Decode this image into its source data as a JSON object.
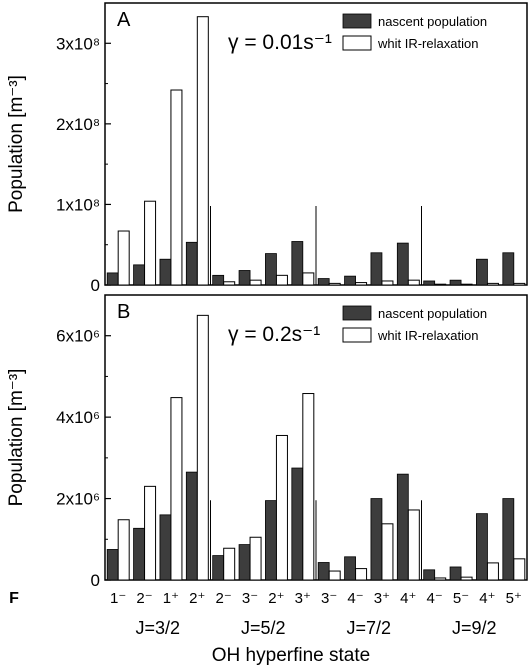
{
  "colors": {
    "nascent": "#3d3d3d",
    "ir": "#ffffff",
    "stroke": "#000000"
  },
  "chart_data": [
    {
      "type": "bar",
      "panel_label": "A",
      "annotation": "γ = 0.01s⁻¹",
      "ylabel": "Population [m⁻³]",
      "ylim": [
        0,
        350000000.0
      ],
      "yticks": [
        0,
        100000000.0,
        200000000.0,
        300000000.0
      ],
      "ytick_labels": [
        "0",
        "1x10⁸",
        "2x10⁸",
        "3x10⁸"
      ],
      "legend": {
        "placement": "top-right",
        "entries": [
          "nascent population",
          "whit IR-relaxation"
        ]
      },
      "categories": [
        "1⁻",
        "2⁻",
        "1⁺",
        "2⁺",
        "2⁻",
        "3⁻",
        "2⁺",
        "3⁺",
        "3⁻",
        "4⁻",
        "3⁺",
        "4⁺",
        "4⁻",
        "5⁻",
        "4⁺",
        "5⁺"
      ],
      "series": [
        {
          "name": "nascent population",
          "values": [
            15000000.0,
            25000000.0,
            32000000.0,
            53000000.0,
            12000000.0,
            18000000.0,
            39000000.0,
            54000000.0,
            8000000.0,
            11000000.0,
            40000000.0,
            52000000.0,
            5000000.0,
            6000000.0,
            32000000.0,
            40000000.0
          ]
        },
        {
          "name": "whit IR-relaxation",
          "values": [
            67000000.0,
            104000000.0,
            242000000.0,
            333000000.0,
            4000000.0,
            6000000.0,
            12000000.0,
            15000000.0,
            2000000.0,
            3000000.0,
            5000000.0,
            6000000.0,
            1000000.0,
            1000000.0,
            2000000.0,
            2000000.0
          ]
        }
      ]
    },
    {
      "type": "bar",
      "panel_label": "B",
      "annotation": "γ = 0.2s⁻¹",
      "ylabel": "Population [m⁻³]",
      "ylim": [
        0,
        7000000.0
      ],
      "yticks": [
        0,
        2000000.0,
        4000000.0,
        6000000.0
      ],
      "ytick_labels": [
        "0",
        "2x10⁶",
        "4x10⁶",
        "6x10⁶"
      ],
      "legend": {
        "placement": "top-right",
        "entries": [
          "nascent population",
          "whit IR-relaxation"
        ]
      },
      "xlabel": "OH hyperfine state",
      "x_prefix": "F",
      "categories": [
        "1⁻",
        "2⁻",
        "1⁺",
        "2⁺",
        "2⁻",
        "3⁻",
        "2⁺",
        "3⁺",
        "3⁻",
        "4⁻",
        "3⁺",
        "4⁺",
        "4⁻",
        "5⁻",
        "4⁺",
        "5⁺"
      ],
      "groups": [
        "J=3/2",
        "J=5/2",
        "J=7/2",
        "J=9/2"
      ],
      "series": [
        {
          "name": "nascent population",
          "values": [
            750000.0,
            1270000.0,
            1600000.0,
            2650000.0,
            600000.0,
            870000.0,
            1950000.0,
            2750000.0,
            430000.0,
            570000.0,
            2000000.0,
            2600000.0,
            250000.0,
            320000.0,
            1630000.0,
            2000000.0
          ]
        },
        {
          "name": "whit IR-relaxation",
          "values": [
            1480000.0,
            2300000.0,
            4480000.0,
            6500000.0,
            780000.0,
            1050000.0,
            3550000.0,
            4580000.0,
            220000.0,
            280000.0,
            1380000.0,
            1720000.0,
            50000.0,
            70000.0,
            420000.0,
            520000.0
          ]
        }
      ]
    }
  ]
}
